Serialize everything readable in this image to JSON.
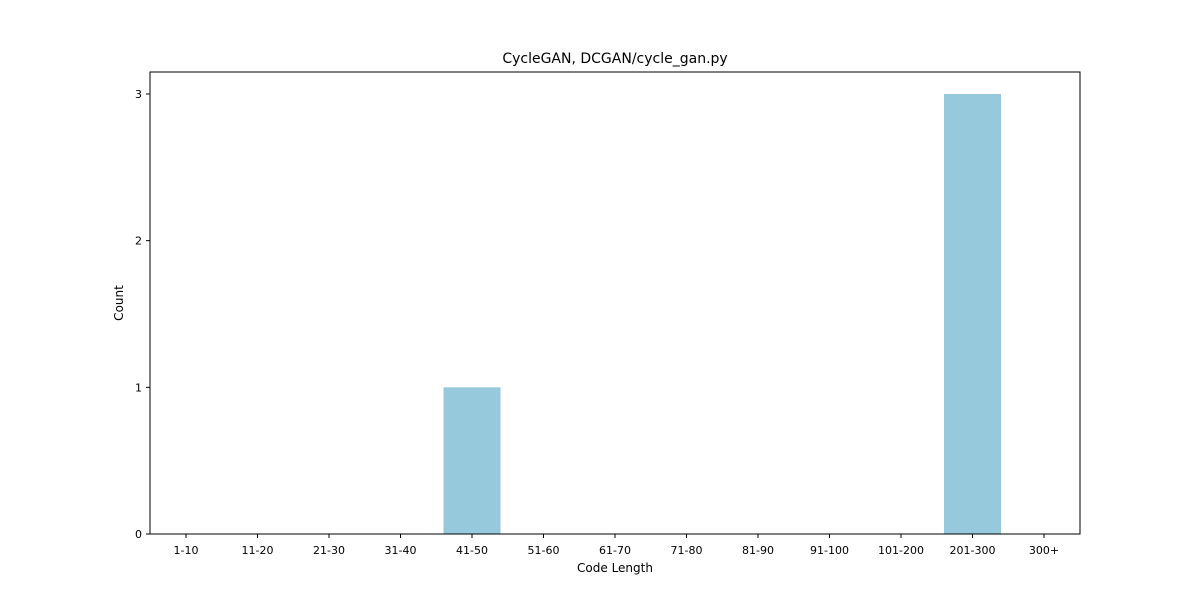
{
  "chart_data": {
    "type": "bar",
    "title": "CycleGAN, DCGAN/cycle_gan.py",
    "xlabel": "Code Length",
    "ylabel": "Count",
    "categories": [
      "1-10",
      "11-20",
      "21-30",
      "31-40",
      "41-50",
      "51-60",
      "61-70",
      "71-80",
      "81-90",
      "91-100",
      "101-200",
      "201-300",
      "300+"
    ],
    "values": [
      0,
      0,
      0,
      0,
      1,
      0,
      0,
      0,
      0,
      0,
      0,
      3,
      0
    ],
    "yticks": [
      0,
      1,
      2,
      3
    ],
    "ylim": [
      0,
      3.15
    ],
    "grid": false,
    "bar_color": "#96c9dc"
  }
}
